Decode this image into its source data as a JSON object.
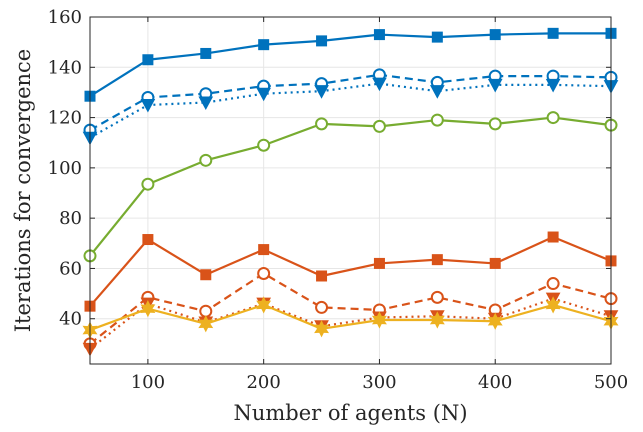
{
  "chart_data": {
    "type": "line",
    "title": "",
    "xlabel": "Number of agents (N)",
    "ylabel": "Iterations for convergence",
    "xlim": [
      50,
      500
    ],
    "ylim": [
      22,
      160
    ],
    "xticks": [
      100,
      200,
      300,
      400,
      500
    ],
    "yticks": [
      40,
      60,
      80,
      100,
      120,
      140,
      160
    ],
    "grid": true,
    "legend": "none",
    "x": [
      50,
      100,
      150,
      200,
      250,
      300,
      350,
      400,
      450,
      500
    ],
    "series": [
      {
        "color": "#0072BD",
        "line": "solid",
        "marker": "square",
        "values": [
          128.5,
          143,
          145.5,
          149,
          150.5,
          153,
          152,
          153,
          153.5,
          153.5
        ]
      },
      {
        "color": "#0072BD",
        "line": "dashed",
        "marker": "circle",
        "values": [
          115,
          128,
          129.5,
          132.5,
          133.5,
          137,
          134,
          136.5,
          136.5,
          136
        ]
      },
      {
        "color": "#0072BD",
        "line": "dotted",
        "marker": "triangle-down",
        "values": [
          112,
          125,
          126,
          129.5,
          130.5,
          133.5,
          130.5,
          133,
          133,
          132.5
        ]
      },
      {
        "color": "#77AC30",
        "line": "solid",
        "marker": "circle",
        "values": [
          65,
          93.5,
          103,
          109,
          117.5,
          116.5,
          119,
          117.5,
          120,
          117
        ]
      },
      {
        "color": "#D95319",
        "line": "solid",
        "marker": "square",
        "values": [
          45,
          71.5,
          57.5,
          67.5,
          57,
          62,
          63.5,
          62,
          72.5,
          63
        ]
      },
      {
        "color": "#D95319",
        "line": "dashed",
        "marker": "circle",
        "values": [
          30,
          48.5,
          43,
          58,
          44.5,
          43.5,
          48.5,
          43.5,
          54,
          48
        ]
      },
      {
        "color": "#D95319",
        "line": "dotted",
        "marker": "triangle-down",
        "values": [
          28,
          46,
          38.5,
          46,
          37,
          40.5,
          41,
          40,
          48,
          41
        ]
      },
      {
        "color": "#EDB120",
        "line": "solid",
        "marker": "hexagram",
        "values": [
          35.5,
          44,
          38,
          45.5,
          36,
          39.5,
          39.5,
          39,
          45.5,
          39
        ]
      }
    ]
  }
}
